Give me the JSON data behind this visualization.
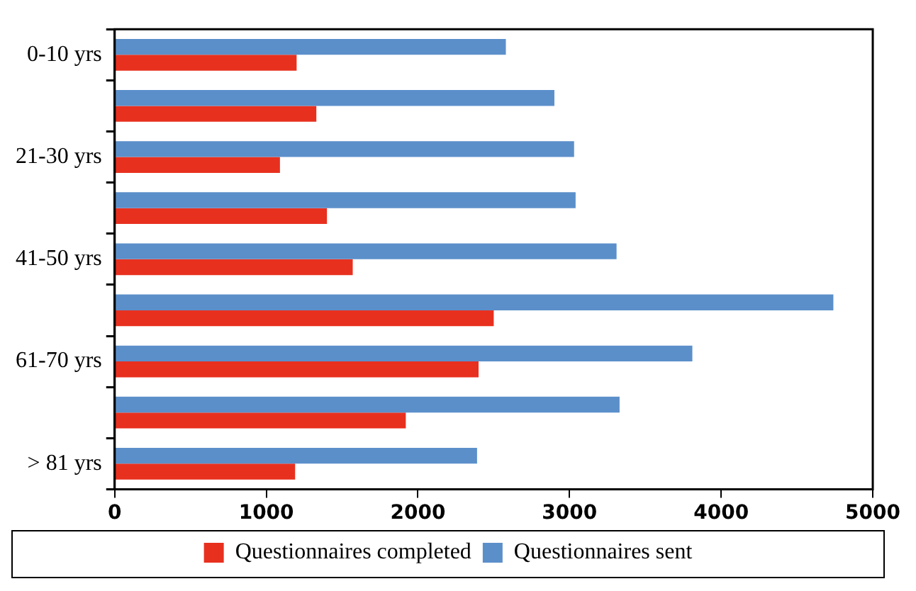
{
  "chart_data": {
    "type": "bar",
    "orientation": "horizontal",
    "categories": [
      "0-10 yrs",
      null,
      "21-30 yrs",
      null,
      "41-50 yrs",
      null,
      "61-70 yrs",
      null,
      "> 81 yrs"
    ],
    "series": [
      {
        "name": "Questionnaires completed",
        "color": "#e8301f",
        "values": [
          1200,
          1330,
          1090,
          1400,
          1570,
          2500,
          2400,
          1920,
          1190
        ]
      },
      {
        "name": "Questionnaires sent",
        "color": "#5b8fca",
        "values": [
          2580,
          2900,
          3030,
          3040,
          3310,
          4740,
          3810,
          3330,
          2390
        ]
      }
    ],
    "xlim": [
      0,
      5000
    ],
    "xticks": [
      0,
      1000,
      2000,
      3000,
      4000,
      5000
    ],
    "grid": false,
    "legend": "bottom"
  }
}
